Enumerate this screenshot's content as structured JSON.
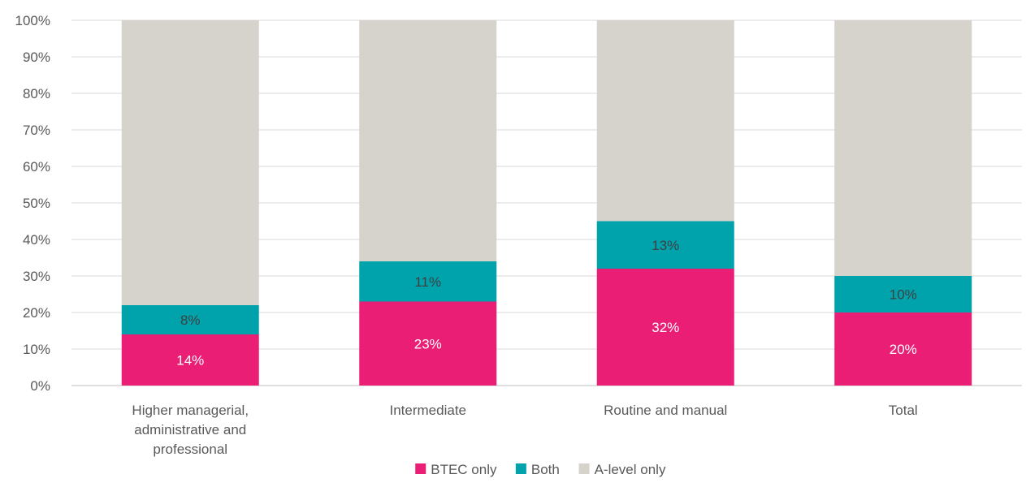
{
  "chart_data": {
    "type": "bar",
    "stacked": true,
    "normalized": true,
    "categories": [
      [
        "Higher managerial,",
        "administrative and",
        "professional"
      ],
      [
        "Intermediate"
      ],
      [
        "Routine and manual"
      ],
      [
        "Total"
      ]
    ],
    "series": [
      {
        "name": "BTEC only",
        "color": "#e91e74",
        "values": [
          14,
          23,
          32,
          20
        ],
        "labels": [
          "14%",
          "23%",
          "32%",
          "20%"
        ],
        "label_color": "#ffffff"
      },
      {
        "name": "Both",
        "color": "#00a2ab",
        "values": [
          8,
          11,
          13,
          10
        ],
        "labels": [
          "8%",
          "11%",
          "13%",
          "10%"
        ],
        "label_color": "#404040"
      },
      {
        "name": "A-level only",
        "color": "#d6d2cc",
        "values": [
          78,
          66,
          55,
          70
        ],
        "labels": [
          "",
          "",
          "",
          ""
        ],
        "label_color": "#404040"
      }
    ],
    "y_ticks": [
      "0%",
      "10%",
      "20%",
      "30%",
      "40%",
      "50%",
      "60%",
      "70%",
      "80%",
      "90%",
      "100%"
    ],
    "ylim": [
      0,
      100
    ],
    "grid": true,
    "legend_position": "bottom",
    "title": "",
    "xlabel": "",
    "ylabel": ""
  }
}
